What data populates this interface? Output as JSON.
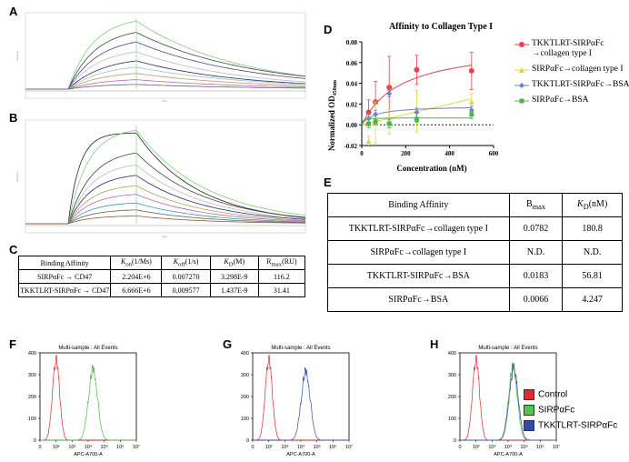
{
  "panel_letters": [
    "A",
    "B",
    "C",
    "D",
    "E",
    "F",
    "G",
    "H"
  ],
  "spr": {
    "a_x_label": "Time",
    "a_y_label": "Response",
    "b_x_label": "Time",
    "b_y_label": "Response"
  },
  "table_c": {
    "headers": [
      "Binding Affinity",
      "K_on(1/Ms)",
      "K_off(1/s)",
      "K_D(M)",
      "R_max(RU)"
    ],
    "rows": [
      [
        "SIRPαFc → CD47",
        "2.204E+6",
        "0.007270",
        "3.298E-9",
        "116.2"
      ],
      [
        "TKKTLRT-SIRPαFc → CD47",
        "6.666E+6",
        "0.009577",
        "1.437E-9",
        "31.41"
      ]
    ]
  },
  "chart_data": [
    {
      "type": "scatter",
      "title": "Affinity to Collagen Type I",
      "xlabel": "Concentration (nM)",
      "ylabel": "Normalized OD450nm",
      "xlim": [
        0,
        600
      ],
      "ylim": [
        -0.02,
        0.08
      ],
      "xticks": [
        "0",
        "200",
        "400",
        "600"
      ],
      "yticks": [
        "-0.02",
        "0.00",
        "0.02",
        "0.04",
        "0.06",
        "0.08"
      ],
      "series": [
        {
          "name": "TKKTLRT-SIRPαFc →collagen type I",
          "color": "#e8434a",
          "marker": "circle",
          "x": [
            31.25,
            62.5,
            125,
            250,
            500
          ],
          "y": [
            0.012,
            0.022,
            0.036,
            0.053,
            0.052
          ],
          "err": [
            0.012,
            0.02,
            0.03,
            0.014,
            0.018
          ],
          "fit": {
            "bmax": 0.0782,
            "kd": 180.8
          }
        },
        {
          "name": "SIRPαFc→collagen type I",
          "color": "#e0d83a",
          "marker": "triangle",
          "x": [
            31.25,
            62.5,
            125,
            250,
            500
          ],
          "y": [
            -0.016,
            0.002,
            0.003,
            0.013,
            0.022
          ],
          "err": [
            0.005,
            0.02,
            0.012,
            0.02,
            0.008
          ],
          "fit": {
            "linear": 5e-05
          }
        },
        {
          "name": "TKKTLRT-SIRPαFc→BSA",
          "color": "#6f7fd0",
          "marker": "diamond",
          "x": [
            31.25,
            62.5,
            125,
            250,
            500
          ],
          "y": [
            0.006,
            0.01,
            0.03,
            0.012,
            0.014
          ],
          "err": [
            0.004,
            0.004,
            0.003,
            0.004,
            0.004
          ],
          "fit": {
            "bmax": 0.0183,
            "kd": 56.81
          }
        },
        {
          "name": "SIRPαFc→BSA",
          "color": "#49b648",
          "marker": "square",
          "x": [
            31.25,
            62.5,
            125,
            250,
            500
          ],
          "y": [
            0.001,
            0.003,
            0.001,
            0.005,
            0.01
          ],
          "err": [
            0.004,
            0.003,
            0.004,
            0.003,
            0.004
          ],
          "fit": {
            "bmax": 0.0066,
            "kd": 4.247
          }
        }
      ]
    },
    {
      "type": "line",
      "title": "Multi-sample : All Events",
      "xlabel": "APC-A700-A",
      "xticks": [
        "0",
        "10²",
        "10³",
        "10⁴",
        "10⁵",
        "10⁶",
        "10⁷"
      ],
      "yticks": [
        "0",
        "100",
        "200",
        "300",
        "400"
      ],
      "series": [
        "Control",
        "SIRPαFc"
      ]
    },
    {
      "type": "line",
      "title": "Multi-sample : All Events",
      "xlabel": "APC-A700-A",
      "xticks": [
        "0",
        "10²",
        "10³",
        "10⁴",
        "10⁵",
        "10⁶",
        "10⁷"
      ],
      "yticks": [
        "0",
        "100",
        "200",
        "300",
        "400"
      ],
      "series": [
        "Control",
        "TKKTLRT-SIRPαFc"
      ]
    },
    {
      "type": "line",
      "title": "Multi-sample : All Events",
      "xlabel": "APC-A700-A",
      "xticks": [
        "0",
        "10²",
        "10³",
        "10⁴",
        "10⁵",
        "10⁶",
        "10⁷"
      ],
      "yticks": [
        "0",
        "100",
        "200",
        "300",
        "400"
      ],
      "series": [
        "Control",
        "SIRPαFc",
        "TKKTLRT-SIRPαFc"
      ]
    }
  ],
  "table_e": {
    "headers": [
      "Binding Affinity",
      "B_max",
      "K_D(nM)"
    ],
    "rows": [
      [
        "TKKTLRT-SIRPαFc→collagen type I",
        "0.0782",
        "180.8"
      ],
      [
        "SIRPαFc→collagen type I",
        "N.D.",
        "N.D."
      ],
      [
        "TKKTLRT-SIRPαFc→BSA",
        "0.0183",
        "56.81"
      ],
      [
        "SIRPαFc→BSA",
        "0.0066",
        "4.247"
      ]
    ]
  },
  "flow_legend": [
    {
      "label": "Control",
      "color": "#e8262b"
    },
    {
      "label": "SIRPαFc",
      "color": "#4cc94a"
    },
    {
      "label": "TKKTLRT-SIRPαFc",
      "color": "#2f49b0"
    }
  ],
  "flow_colors": {
    "control": "#e8262b",
    "sirp": "#3fbf3d",
    "tkk": "#3348b5"
  }
}
